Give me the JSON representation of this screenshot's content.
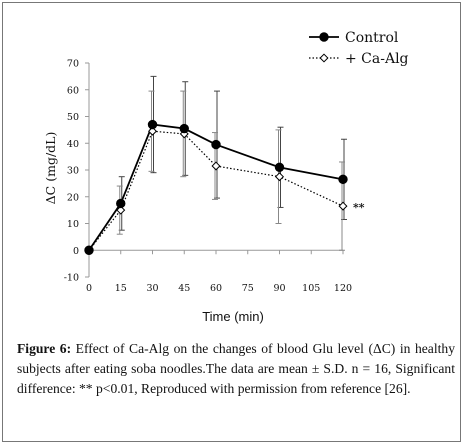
{
  "chart_data": {
    "type": "line",
    "xlabel": "Time (min)",
    "ylabel": "ΔC (mg/dL)",
    "x": [
      0,
      15,
      30,
      45,
      60,
      90,
      120
    ],
    "xticks": [
      0,
      15,
      30,
      45,
      60,
      75,
      90,
      105,
      120
    ],
    "yticks": [
      -10,
      0,
      10,
      20,
      30,
      40,
      50,
      60,
      70
    ],
    "xlim": [
      0,
      120
    ],
    "ylim": [
      -10,
      70
    ],
    "grid": false,
    "legend_position": "top-right",
    "series": [
      {
        "name": "Control",
        "marker": "filled-circle",
        "line": "solid",
        "color": "#000000",
        "values": [
          0,
          17.5,
          47,
          45.5,
          39.5,
          31,
          26.5
        ],
        "sd": [
          0,
          10,
          18,
          17.5,
          20,
          15,
          15
        ]
      },
      {
        "name": "+ Ca-Alg",
        "marker": "open-diamond",
        "line": "dotted",
        "color": "#000000",
        "values": [
          0,
          15,
          44.5,
          43.5,
          31.5,
          27.5,
          16.5
        ],
        "sd": [
          0,
          9,
          15,
          16,
          12.5,
          17.5,
          16.5
        ]
      }
    ],
    "annotations": [
      {
        "text": "**",
        "x": 120,
        "y": 16.5
      }
    ]
  },
  "caption": {
    "label": "Figure 6:",
    "text": " Effect of Ca-Alg on the changes of blood Glu level (ΔC) in healthy subjects after eating soba noodles.The data are mean ± S.D. n = 16, Significant difference: ** p<0.01, Reproduced with permission from reference [26]."
  }
}
